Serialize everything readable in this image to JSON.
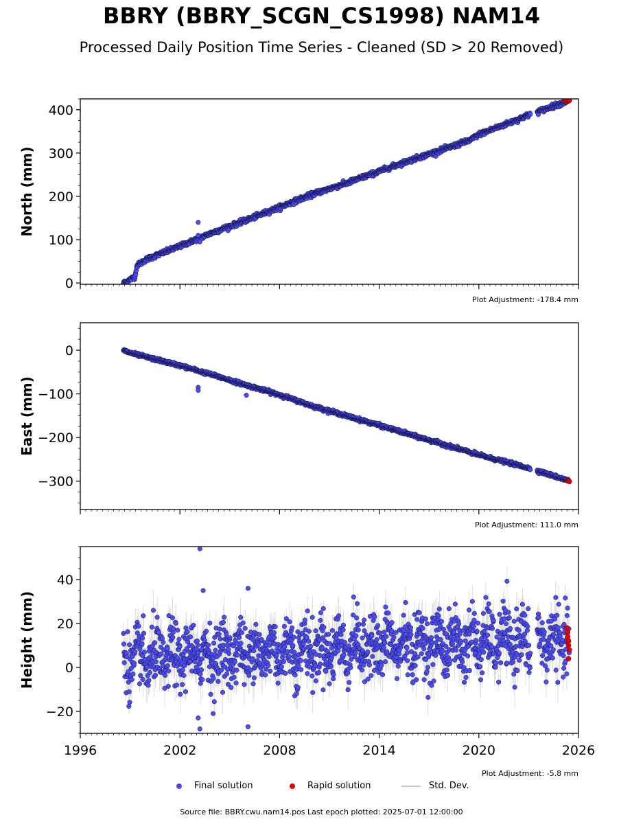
{
  "title": "BBRY (BBRY_SCGN_CS1998) NAM14",
  "subtitle": "Processed Daily Position Time Series - Cleaned (SD > 20 Removed)",
  "footer": "Source file: BBRY.cwu.nam14.pos  Last epoch plotted: 2025-07-01 12:00:00",
  "legend": {
    "final": "Final solution",
    "rapid": "Rapid solution",
    "std": "Std. Dev."
  },
  "colors": {
    "final": "#4c4cf0",
    "rapid": "#e00000",
    "std": "#c8c8c8",
    "edge": "#101040"
  },
  "chart_data": [
    {
      "type": "scatter",
      "ylabel": "North (mm)",
      "adjustment": "Plot Adjustment: -178.4 mm",
      "xlim": [
        1996,
        2026
      ],
      "ylim": [
        -3,
        425
      ],
      "yticks": [
        0,
        100,
        200,
        300,
        400
      ],
      "xticks": [
        1996,
        2002,
        2008,
        2014,
        2020,
        2026
      ],
      "show_x_tick_labels": false,
      "trend_points": [
        [
          1998.6,
          0
        ],
        [
          1999.0,
          8
        ],
        [
          1999.3,
          15
        ],
        [
          1999.4,
          40
        ],
        [
          2000.0,
          55
        ],
        [
          2002.0,
          85
        ],
        [
          2004.0,
          117
        ],
        [
          2006.0,
          145
        ],
        [
          2008.0,
          175
        ],
        [
          2010.0,
          205
        ],
        [
          2012.0,
          230
        ],
        [
          2014.0,
          258
        ],
        [
          2016.0,
          285
        ],
        [
          2018.0,
          310
        ],
        [
          2019.5,
          330
        ],
        [
          2020.0,
          343
        ],
        [
          2022.0,
          372
        ],
        [
          2023.0,
          388
        ],
        [
          2025.5,
          422
        ]
      ],
      "gaps": [
        [
          2023.1,
          2023.5
        ]
      ],
      "noise": 2.5,
      "outliers": [
        [
          2003.1,
          140
        ],
        [
          2003.1,
          110
        ],
        [
          2003.2,
          95
        ]
      ],
      "rapid": [
        [
          2025.2,
          420
        ],
        [
          2025.3,
          421
        ],
        [
          2025.4,
          422
        ],
        [
          2025.45,
          421
        ]
      ],
      "std_dev": 0
    },
    {
      "type": "scatter",
      "ylabel": "East (mm)",
      "adjustment": "Plot Adjustment: 111.0 mm",
      "xlim": [
        1996,
        2026
      ],
      "ylim": [
        -365,
        63
      ],
      "yticks": [
        0,
        -100,
        -200,
        -300
      ],
      "xticks": [
        1996,
        2002,
        2008,
        2014,
        2020,
        2026
      ],
      "show_x_tick_labels": false,
      "trend_points": [
        [
          1998.6,
          0
        ],
        [
          1999.0,
          -6
        ],
        [
          2000.0,
          -16
        ],
        [
          2002.0,
          -35
        ],
        [
          2004.0,
          -57
        ],
        [
          2006.0,
          -80
        ],
        [
          2008.0,
          -102
        ],
        [
          2010.0,
          -128
        ],
        [
          2012.0,
          -150
        ],
        [
          2014.0,
          -172
        ],
        [
          2016.0,
          -195
        ],
        [
          2018.0,
          -217
        ],
        [
          2020.0,
          -240
        ],
        [
          2022.0,
          -260
        ],
        [
          2023.0,
          -270
        ],
        [
          2025.5,
          -300
        ]
      ],
      "gaps": [
        [
          2023.1,
          2023.5
        ]
      ],
      "noise": 1.8,
      "outliers": [
        [
          2003.1,
          -85
        ],
        [
          2003.1,
          -92
        ],
        [
          2006.0,
          -103
        ]
      ],
      "rapid": [
        [
          2025.35,
          -299
        ],
        [
          2025.4,
          -300
        ],
        [
          2025.45,
          -301
        ]
      ],
      "std_dev": 0
    },
    {
      "type": "scatter",
      "ylabel": "Height (mm)",
      "adjustment": "Plot Adjustment: -5.8 mm",
      "xlim": [
        1996,
        2026
      ],
      "ylim": [
        -30,
        55
      ],
      "yticks": [
        40,
        20,
        0,
        -20
      ],
      "xticks": [
        1996,
        2002,
        2008,
        2014,
        2020,
        2026
      ],
      "xtick_labels": [
        "1996",
        "2002",
        "2008",
        "2014",
        "2020",
        "2026"
      ],
      "show_x_tick_labels": true,
      "trend_points": [
        [
          1998.6,
          3
        ],
        [
          2002.0,
          5
        ],
        [
          2006.0,
          7
        ],
        [
          2010.0,
          8
        ],
        [
          2014.0,
          10
        ],
        [
          2018.0,
          11
        ],
        [
          2022.0,
          12
        ],
        [
          2025.5,
          12
        ]
      ],
      "gaps": [
        [
          2023.1,
          2023.5
        ]
      ],
      "noise": 8,
      "outliers": [
        [
          2003.2,
          54
        ],
        [
          2003.4,
          35
        ],
        [
          2006.1,
          36
        ],
        [
          2003.2,
          -28
        ],
        [
          2006.1,
          -27
        ],
        [
          2003.1,
          -23
        ],
        [
          2004.0,
          -21
        ]
      ],
      "rapid": [
        [
          2025.3,
          18
        ],
        [
          2025.35,
          16
        ],
        [
          2025.4,
          12
        ],
        [
          2025.4,
          10
        ],
        [
          2025.45,
          8
        ],
        [
          2025.4,
          4
        ],
        [
          2025.35,
          14
        ]
      ],
      "std_dev": 1
    }
  ]
}
